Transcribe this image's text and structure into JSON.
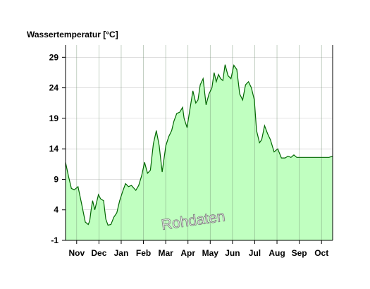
{
  "chart_data": {
    "type": "area",
    "ylabel": "Wassertemperatur [°C]",
    "ylim": [
      -1,
      31
    ],
    "yticks": [
      29,
      24,
      19,
      14,
      9,
      4,
      -1
    ],
    "x_ticks": [
      "Nov",
      "Dec",
      "Jan",
      "Feb",
      "Mar",
      "Apr",
      "May",
      "Jun",
      "Jul",
      "Aug",
      "Sep",
      "Oct"
    ],
    "x_range_days": [
      0,
      365
    ],
    "grid": true,
    "watermark": "Rohdaten",
    "colors": {
      "fill": "#c0ffc0",
      "line": "#006600",
      "grid": "#cccccc"
    },
    "series": [
      {
        "x": [
          0,
          4,
          8,
          12,
          17,
          22,
          27,
          31,
          33,
          35,
          37,
          40,
          45,
          48,
          52,
          55,
          58,
          62,
          66,
          70,
          74,
          78,
          82,
          86,
          90,
          96,
          100,
          104,
          108,
          112,
          116,
          120,
          124,
          128,
          132,
          137,
          141,
          145,
          148,
          152,
          156,
          160,
          162,
          166,
          170,
          174,
          178,
          181,
          184,
          188,
          192,
          196,
          200,
          203,
          206,
          209,
          212,
          215,
          218,
          222,
          226,
          230,
          234,
          238,
          242,
          246,
          250,
          254,
          258,
          261,
          265,
          268,
          272,
          276,
          280,
          285,
          290,
          295,
          300,
          304,
          308,
          312,
          316,
          320,
          324,
          328,
          332,
          336,
          340,
          344,
          348,
          352,
          356,
          360,
          365
        ],
        "y": [
          11.8,
          9.5,
          7.5,
          7.3,
          7.8,
          5.0,
          2.0,
          1.6,
          2.2,
          4.0,
          5.5,
          4.0,
          6.5,
          5.8,
          5.5,
          2.5,
          1.5,
          1.6,
          2.8,
          3.5,
          5.5,
          7.0,
          8.3,
          7.8,
          8.0,
          7.2,
          8.0,
          9.6,
          11.8,
          10.0,
          10.5,
          14.8,
          17.0,
          14.5,
          10.2,
          14.5,
          16.0,
          17.0,
          18.5,
          19.8,
          20.0,
          20.8,
          19.0,
          17.5,
          20.5,
          23.5,
          21.5,
          22.0,
          24.5,
          25.5,
          21.2,
          23.0,
          24.0,
          26.5,
          25.0,
          26.2,
          25.5,
          25.2,
          27.8,
          26.0,
          25.5,
          27.7,
          27.0,
          23.0,
          22.0,
          24.5,
          25.0,
          24.0,
          22.0,
          17.0,
          15.0,
          15.5,
          17.8,
          16.5,
          15.5,
          13.5,
          14.0,
          12.5,
          12.5,
          12.8,
          12.6,
          13.0,
          12.6,
          12.6,
          12.6,
          12.6,
          12.6,
          12.6,
          12.6,
          12.6,
          12.6,
          12.6,
          12.6,
          12.6,
          12.8
        ]
      }
    ]
  }
}
